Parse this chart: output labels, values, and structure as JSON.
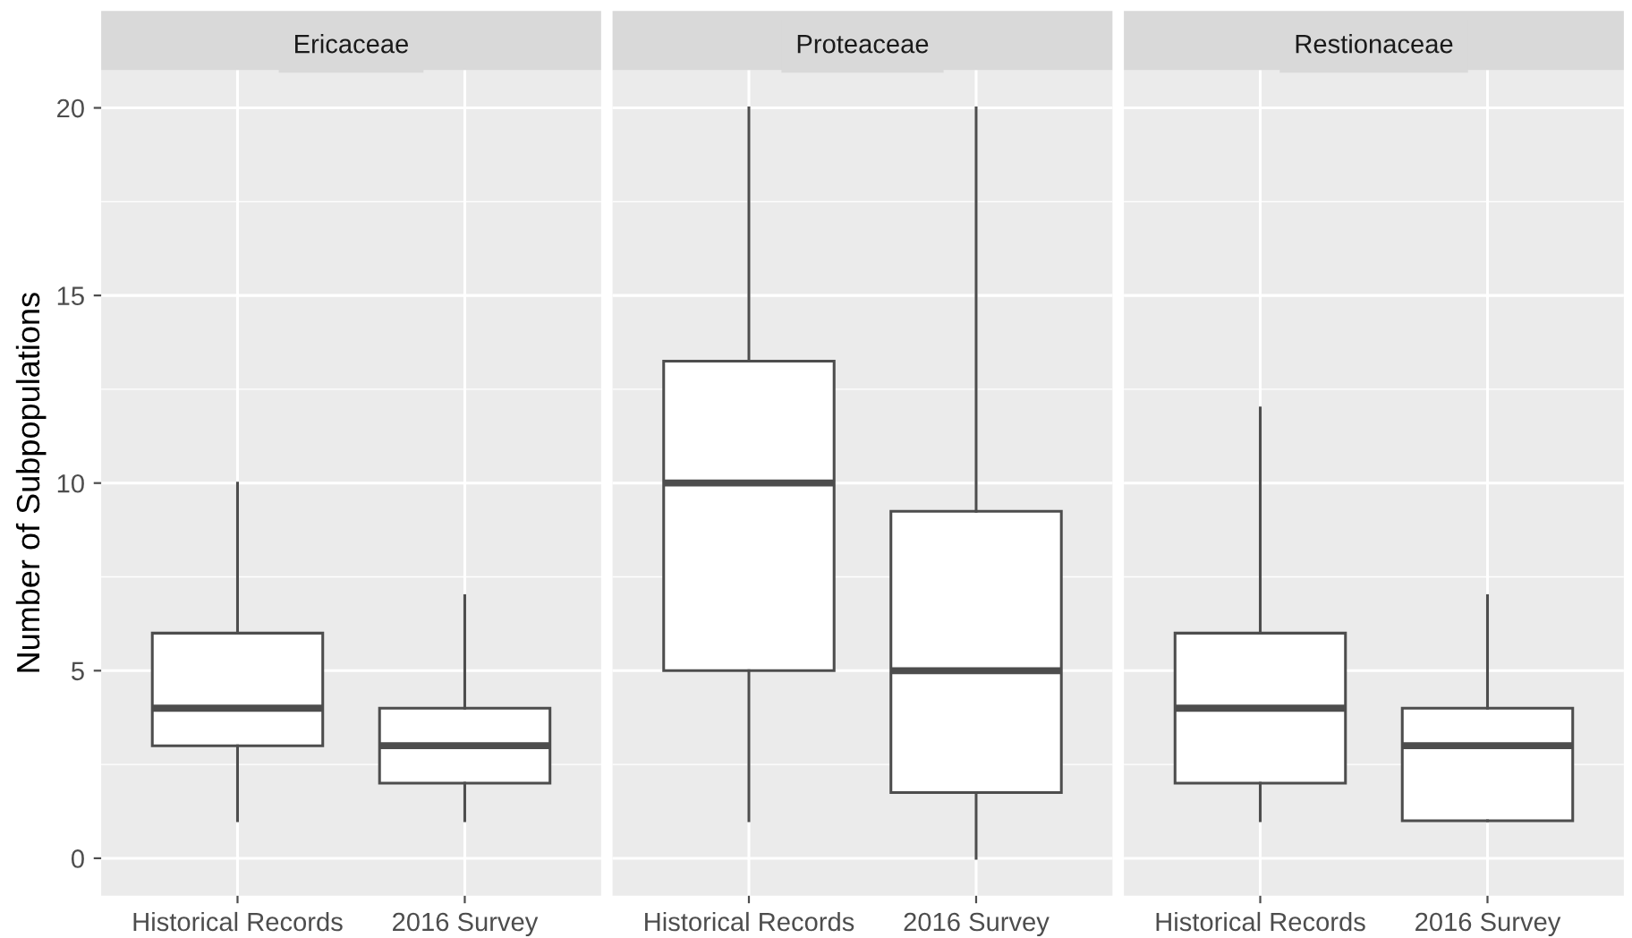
{
  "chart_data": [
    {
      "type": "box",
      "title": "Ericaceae",
      "ylabel": "Number of Subpopulations",
      "categories": [
        "Historical Records",
        "2016 Survey"
      ],
      "ylim": [
        -1,
        21
      ],
      "yticks": [
        0,
        5,
        10,
        15,
        20
      ],
      "grid": true,
      "boxes": [
        {
          "low": 1,
          "q1": 3,
          "median": 4,
          "q3": 6,
          "high": 10
        },
        {
          "low": 1,
          "q1": 2,
          "median": 3,
          "q3": 4,
          "high": 7
        }
      ]
    },
    {
      "type": "box",
      "title": "Proteaceae",
      "categories": [
        "Historical Records",
        "2016 Survey"
      ],
      "ylim": [
        -1,
        21
      ],
      "yticks": [
        0,
        5,
        10,
        15,
        20
      ],
      "grid": true,
      "tick_labels": "x",
      "boxes": [
        {
          "low": 1,
          "q1": 5,
          "median": 10,
          "q3": 13.25,
          "high": 20
        },
        {
          "low": 0,
          "q1": 1.75,
          "median": 5,
          "q3": 9.25,
          "high": 20
        }
      ]
    },
    {
      "type": "box",
      "title": "Restionaceae",
      "categories": [
        "Historical Records",
        "2016 Survey"
      ],
      "ylim": [
        -1,
        21
      ],
      "yticks": [
        0,
        5,
        10,
        15,
        20
      ],
      "grid": true,
      "tick_labels": "x",
      "boxes": [
        {
          "low": 1,
          "q1": 2,
          "median": 4,
          "q3": 6,
          "high": 12
        },
        {
          "low": 1,
          "q1": 1,
          "median": 3,
          "q3": 4,
          "high": 7
        }
      ]
    }
  ]
}
